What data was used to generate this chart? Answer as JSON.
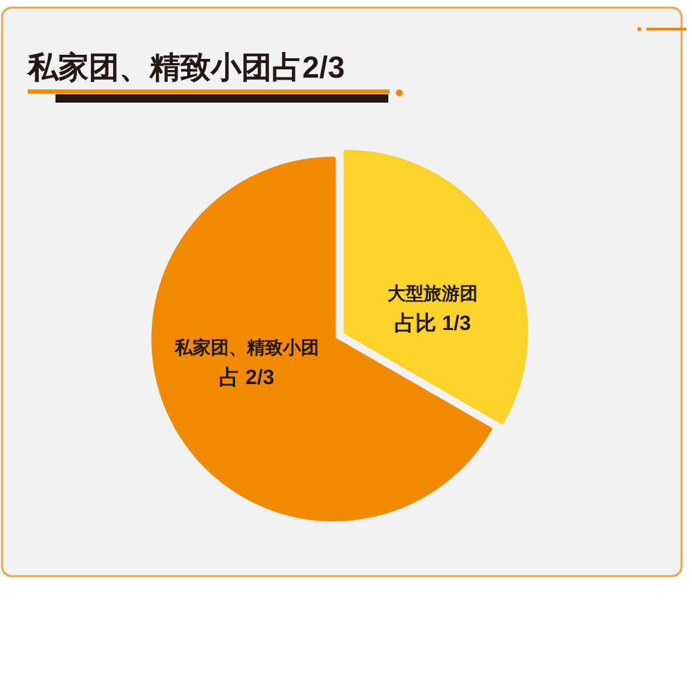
{
  "chart_data": {
    "type": "pie",
    "title": "私家团、精致小团占2/3",
    "categories": [
      "大型旅游团",
      "私家团、精致小团"
    ],
    "values": [
      33.33,
      66.67
    ],
    "colors": [
      "#fbd32b",
      "#f28a00"
    ],
    "value_labels": [
      "占比 1/3",
      "占 2/3"
    ]
  }
}
